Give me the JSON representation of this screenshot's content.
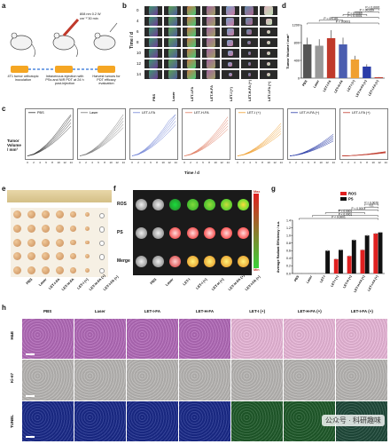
{
  "panels": {
    "a": {
      "letter": "a",
      "steps": [
        {
          "day": "-4 d",
          "text": "4T1 tumor orthotopic inoculation"
        },
        {
          "day": "0 d",
          "text": "Intravenous injection with PSs and NIR PDT at 24 h post-injection"
        },
        {
          "day": "14 d",
          "text": "Harvest tumors for PDT efficacy evaluation"
        }
      ],
      "laser_note": "808 nm 0.2 W cm⁻² 30 min"
    },
    "b": {
      "letter": "b",
      "ylabel": "Time / d",
      "days": [
        "0",
        "4",
        "6",
        "8",
        "10",
        "12",
        "14"
      ],
      "groups": [
        "PBS",
        "Laser",
        "LET-I-FA",
        "LET-H-FA",
        "LET-I (+)",
        "LET-H-FA (+)",
        "LET-I-FA (+)"
      ]
    },
    "c": {
      "letter": "c",
      "ylabel": "Tumor Volume / mm³",
      "xlabel": "Time / d",
      "subplots": [
        {
          "name": "PBS",
          "color": "#333333"
        },
        {
          "name": "Laser",
          "color": "#777777"
        },
        {
          "name": "LET-I-FA",
          "color": "#6f82d6"
        },
        {
          "name": "LET-H-FA",
          "color": "#e07a5f"
        },
        {
          "name": "LET-I (+)",
          "color": "#f0a030"
        },
        {
          "name": "LET-H-FA (+)",
          "color": "#2a3ca8"
        },
        {
          "name": "LET-I-FA (+)",
          "color": "#c0392b"
        }
      ]
    },
    "d": {
      "letter": "d",
      "ylabel": "Tumor Volume / mm³",
      "pvalues": [
        "P < 0.0001",
        "P = 0.0181",
        "P < 0.0001",
        "P = 0.0069",
        "P = 0.0159",
        "P < 0.0001"
      ]
    },
    "e": {
      "letter": "e",
      "groups": [
        "PBS",
        "Laser",
        "LET-I-FA",
        "LET-H-FA",
        "LET-I (+)",
        "LET-H-FA (+)",
        "LET-I-FA (+)"
      ]
    },
    "f": {
      "letter": "f",
      "rows": [
        "ROS",
        "PS",
        "Merge"
      ],
      "scale_max": "Max",
      "scale_min": "Min",
      "groups": [
        "PBS",
        "Laser",
        "LET-I",
        "LET-I (+)",
        "LET-H (+)",
        "LET-H-FA (+)",
        "LET-I-FA (+)"
      ]
    },
    "g": {
      "letter": "g",
      "ylabel": "Average Radiant Efficiency / a.u.",
      "legend": [
        "ROS",
        "PS"
      ],
      "pvalues": [
        "P = 0.0076",
        "n.s.",
        "P < 0.0001",
        "P < 0.0001",
        "P < 0.0001",
        "P < 0.0001"
      ]
    },
    "h": {
      "letter": "h",
      "rows": [
        "H&E",
        "Ki-67",
        "TUNEL"
      ],
      "cols": [
        "PBS",
        "Laser",
        "LET-I-FA",
        "LET-H-FA",
        "LET-I (+)",
        "LET-H-FA (+)",
        "LET-I-FA (+)"
      ]
    }
  },
  "watermark": "公众号 · 科研趣味",
  "colors": {
    "ros": "#e02020",
    "ps": "#111111",
    "he": "#b26ab8",
    "ki67": "#b8b6b4",
    "tunel": "#1a2a8a"
  },
  "chart_data": [
    {
      "type": "bar",
      "title": "",
      "categories": [
        "PBS",
        "Laser",
        "LET-I-FA",
        "LET-H-FA",
        "LET-I (+)",
        "LET-H-FA (+)",
        "LET-I-FA (+)"
      ],
      "values": [
        760,
        730,
        900,
        760,
        420,
        260,
        20
      ],
      "ylabel": "Tumor Volume / mm³",
      "ylim": [
        0,
        1200
      ],
      "colors": [
        "#555555",
        "#999999",
        "#c0392b",
        "#4a5db0",
        "#f0a030",
        "#2a3ca8",
        "#c0392b"
      ]
    },
    {
      "type": "bar",
      "title": "",
      "categories": [
        "PBS",
        "Laser",
        "LET-I",
        "LET-I (+)",
        "LET-H (+)",
        "LET-H-FA (+)",
        "LET-I-FA (+)"
      ],
      "series": [
        {
          "name": "ROS",
          "values": [
            0.0,
            0.0,
            0.0,
            0.38,
            0.46,
            0.62,
            1.05
          ]
        },
        {
          "name": "PS",
          "values": [
            0.0,
            0.0,
            0.6,
            0.62,
            0.88,
            1.0,
            1.08
          ]
        }
      ],
      "ylabel": "Average Radiant Efficiency / a.u.",
      "ylim": [
        0,
        1.4
      ]
    }
  ]
}
